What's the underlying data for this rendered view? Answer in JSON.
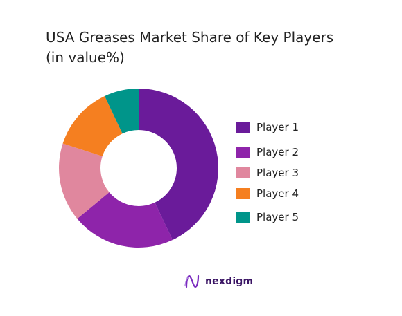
{
  "title_line1": "USA Greases Market Share of Key Players",
  "title_line2": "(in value%)",
  "brand": {
    "name": "nexdigm",
    "icon": "nexdigm-logo-icon"
  },
  "chart_data": {
    "type": "pie",
    "donut": true,
    "title": "USA Greases Market Share of Key Players (in value%)",
    "legend_position": "right",
    "categories": [
      "Player 1",
      "Player 2",
      "Player 3",
      "Player 4",
      "Player 5"
    ],
    "values": [
      43,
      21,
      16,
      13,
      7
    ],
    "colors": [
      "#6a1b9a",
      "#8e24aa",
      "#e0879e",
      "#f57f20",
      "#00958a"
    ]
  }
}
